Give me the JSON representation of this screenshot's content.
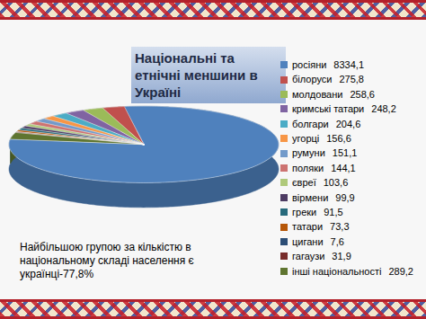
{
  "chart_data": {
    "type": "pie",
    "title": "Національні та етнічні меншини в Україні",
    "categories": [
      "росіяни",
      "білоруси",
      "молдовани",
      "кримські татари",
      "болгари",
      "угорці",
      "румуни",
      "поляки",
      "євреї",
      "вірмени",
      "греки",
      "татари",
      "цигани",
      "гагаузи",
      "інші національності"
    ],
    "values": [
      8334.1,
      275.8,
      258.6,
      248.2,
      204.6,
      156.6,
      151.1,
      144.1,
      103.6,
      99.9,
      91.5,
      73.3,
      7.6,
      31.9,
      289.2
    ],
    "value_labels": [
      "8334,1",
      "275,8",
      "258,6",
      "248,2",
      "204,6",
      "156,6",
      "151,1",
      "144,1",
      "103,6",
      "99,9",
      "91,5",
      "73,3",
      "7,6",
      "31,9",
      "289,2"
    ],
    "colors": [
      "#4F81BD",
      "#C0504D",
      "#9BBB59",
      "#8064A2",
      "#4BACC6",
      "#F79646",
      "#729ACA",
      "#CD7371",
      "#AFC97A",
      "#4D3B62",
      "#276A7C",
      "#B65708",
      "#2C4D75",
      "#772C2A",
      "#5F7530"
    ],
    "legend": "right",
    "annotations": [
      "Найбільшою групою за кількістю в національному складі населення є українці-77,8%"
    ]
  }
}
